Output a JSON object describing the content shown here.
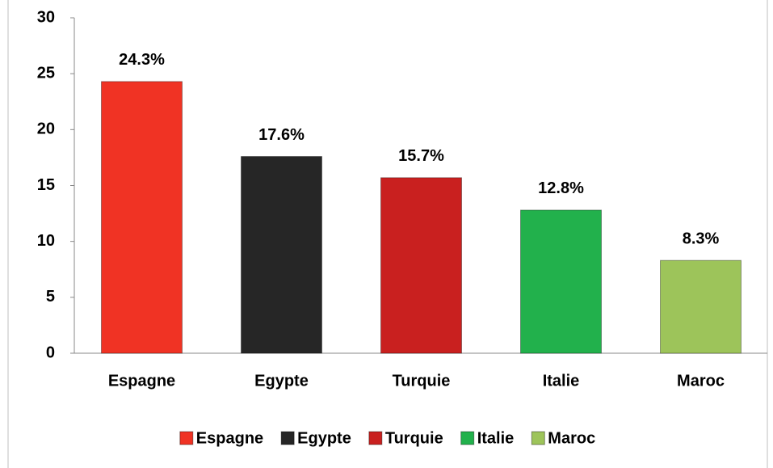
{
  "chart_data": {
    "type": "bar",
    "categories": [
      "Espagne",
      "Egypte",
      "Turquie",
      "Italie",
      "Maroc"
    ],
    "values": [
      24.3,
      17.6,
      15.7,
      12.8,
      8.3
    ],
    "value_labels": [
      "24.3%",
      "17.6%",
      "15.7%",
      "12.8%",
      "8.3%"
    ],
    "colors": [
      "#f03324",
      "#262626",
      "#c9201f",
      "#22b14c",
      "#9dc45a"
    ],
    "ylim": [
      0,
      30
    ],
    "yticks": [
      0,
      5,
      10,
      15,
      20,
      25,
      30
    ],
    "grid": false,
    "legend": "bottom"
  }
}
